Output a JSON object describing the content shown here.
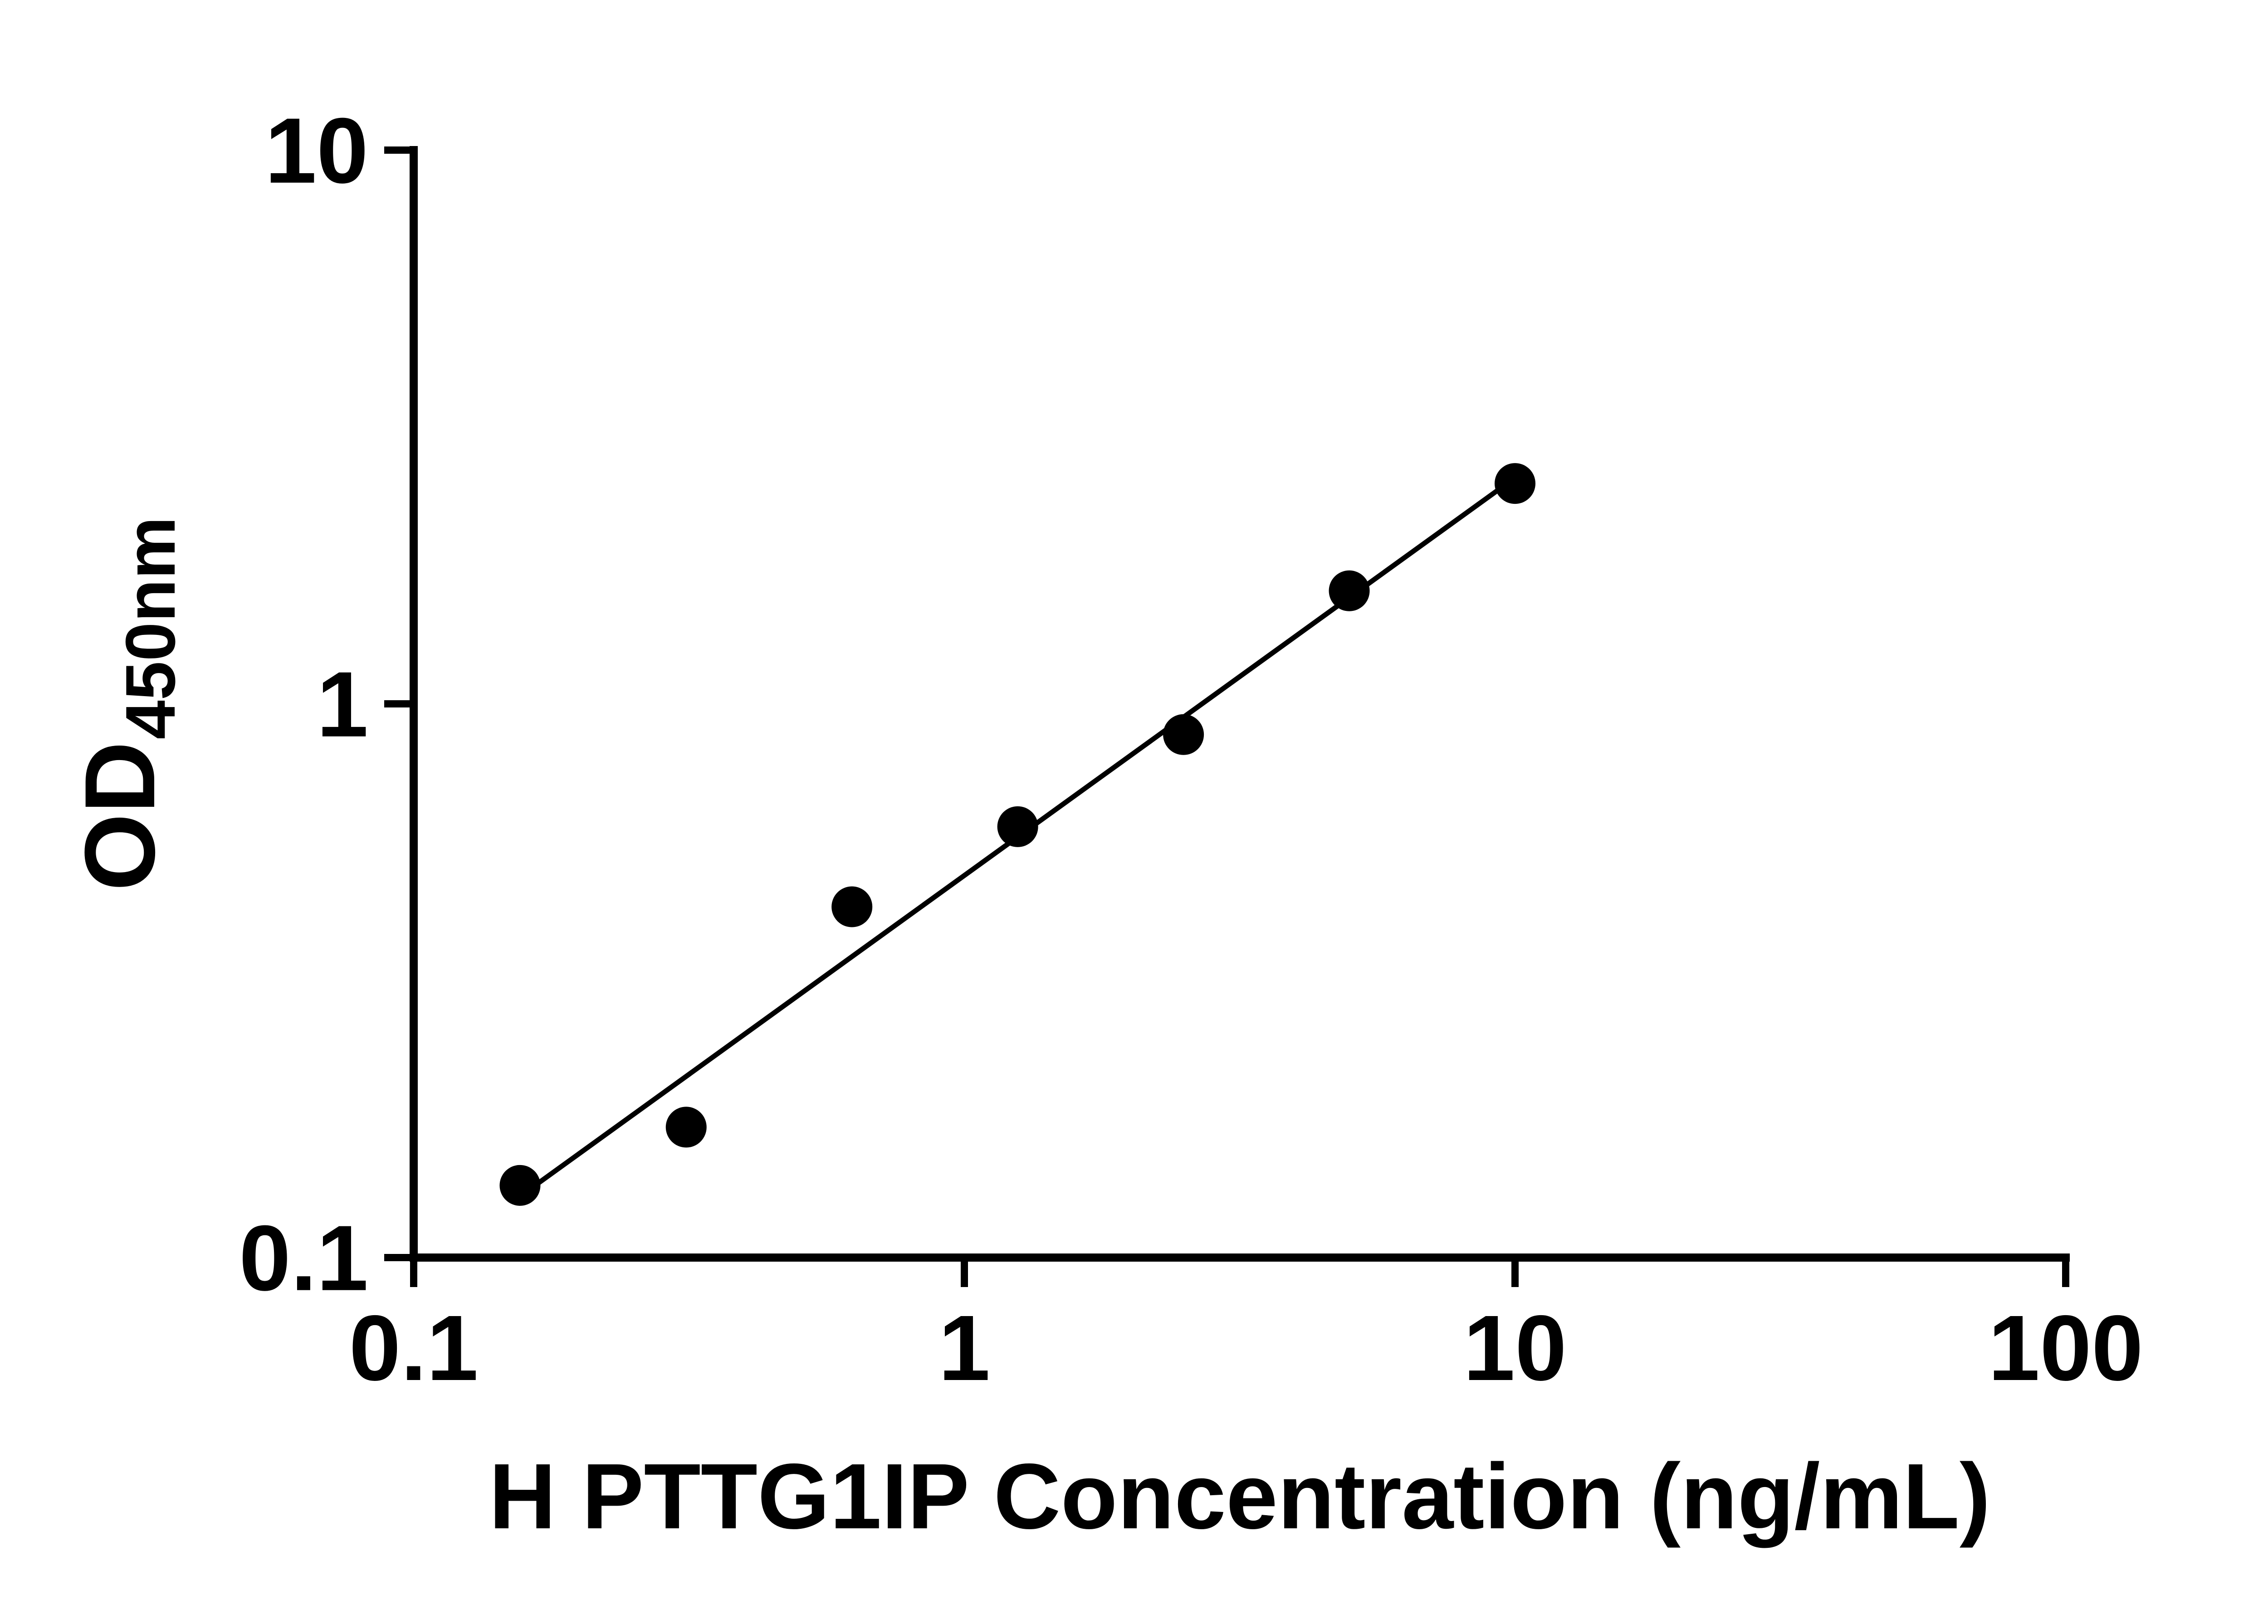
{
  "chart": {
    "ylabel_main": "OD",
    "ylabel_sub": "450nm"
  },
  "chart_data": {
    "type": "scatter",
    "title": "",
    "xlabel": "H PTTG1IP Concentration (ng/mL)",
    "ylabel": "OD450nm",
    "x_scale": "log",
    "y_scale": "log",
    "xlim": [
      0.1,
      100
    ],
    "ylim": [
      0.1,
      10
    ],
    "x_ticks": [
      0.1,
      1,
      10,
      100
    ],
    "x_tick_labels": [
      "0.1",
      "1",
      "10",
      "100"
    ],
    "y_ticks": [
      0.1,
      1,
      10
    ],
    "y_tick_labels": [
      "0.1",
      "1",
      "10"
    ],
    "grid": false,
    "legend": false,
    "marker_color": "#000000",
    "line_color": "#000000",
    "axis_color": "#000000",
    "x": [
      0.156,
      0.3125,
      0.625,
      1.25,
      2.5,
      5,
      10
    ],
    "y": [
      0.135,
      0.172,
      0.43,
      0.6,
      0.88,
      1.6,
      2.5
    ],
    "trend_line": {
      "x1": 0.156,
      "y1": 0.129,
      "x2": 10,
      "y2": 2.56
    }
  }
}
